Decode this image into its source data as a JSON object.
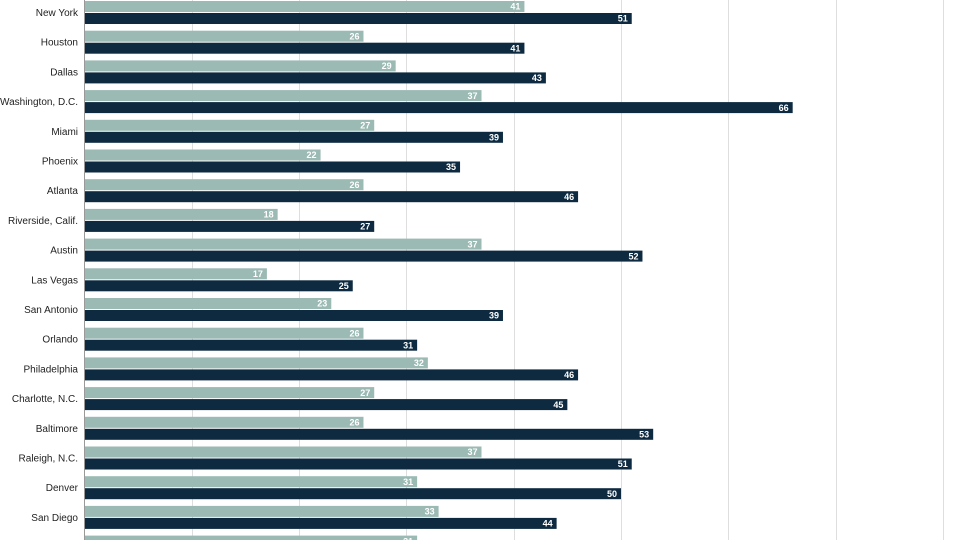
{
  "chart_data": {
    "type": "bar",
    "orientation": "horizontal",
    "categories": [
      "New York",
      "Houston",
      "Dallas",
      "Washington, D.C.",
      "Miami",
      "Phoenix",
      "Atlanta",
      "Riverside, Calif.",
      "Austin",
      "Las Vegas",
      "San Antonio",
      "Orlando",
      "Philadelphia",
      "Charlotte, N.C.",
      "Baltimore",
      "Raleigh, N.C.",
      "Denver",
      "San Diego",
      ""
    ],
    "series": [
      {
        "color": "#9bbab3",
        "values": [
          41,
          26,
          29,
          37,
          27,
          22,
          26,
          18,
          37,
          17,
          23,
          26,
          32,
          27,
          26,
          37,
          31,
          33,
          31
        ]
      },
      {
        "color": "#0d2a40",
        "values": [
          51,
          41,
          43,
          66,
          39,
          35,
          46,
          27,
          52,
          25,
          39,
          31,
          46,
          45,
          53,
          51,
          50,
          44,
          null
        ]
      }
    ],
    "xlim": [
      0,
      80
    ],
    "grid": true,
    "gridline_step": 10
  }
}
